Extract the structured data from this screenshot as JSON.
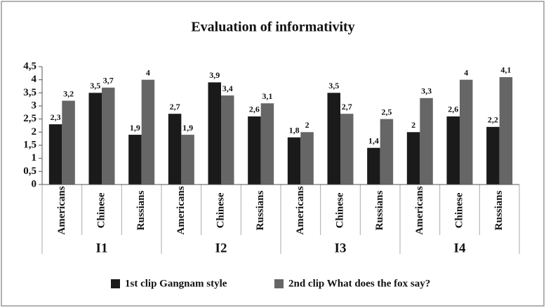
{
  "chart_data": {
    "type": "bar",
    "title": "Evaluation of informativity",
    "categories": [
      "Americans",
      "Chinese",
      "Russians",
      "Americans",
      "Chinese",
      "Russians",
      "Americans",
      "Chinese",
      "Russians",
      "Americans",
      "Chinese",
      "Russians"
    ],
    "groups": [
      "I1",
      "I2",
      "I3",
      "I4"
    ],
    "series": [
      {
        "name": "1st clip Gangnam style",
        "color": "#1a1a1a",
        "values": [
          2.3,
          3.5,
          1.9,
          2.7,
          3.9,
          2.6,
          1.8,
          3.5,
          1.4,
          2,
          2.6,
          2.2
        ],
        "value_labels": [
          "2,3",
          "3,5",
          "1,9",
          "2,7",
          "3,9",
          "2,6",
          "1,8",
          "3,5",
          "1,4",
          "2",
          "2,6",
          "2,2"
        ]
      },
      {
        "name": "2nd clip What does the fox say?",
        "color": "#666666",
        "values": [
          3.2,
          3.7,
          4,
          1.9,
          3.4,
          3.1,
          2,
          2.7,
          2.5,
          3.3,
          4,
          4.1
        ],
        "value_labels": [
          "3,2",
          "3,7",
          "4",
          "1,9",
          "3,4",
          "3,1",
          "2",
          "2,7",
          "2,5",
          "3,3",
          "4",
          "4,1"
        ]
      }
    ],
    "ylim": [
      0,
      4.5
    ],
    "yticks": [
      0,
      {
        "value": 0.5,
        "label": "0,5"
      },
      1,
      {
        "value": 1.5,
        "label": "1,5"
      },
      2,
      {
        "value": 2.5,
        "label": "2,5"
      },
      3,
      {
        "value": 3.5,
        "label": "3,5"
      },
      4,
      {
        "value": 4.5,
        "label": "4,5"
      }
    ],
    "grid": false,
    "legend": "bottom"
  }
}
